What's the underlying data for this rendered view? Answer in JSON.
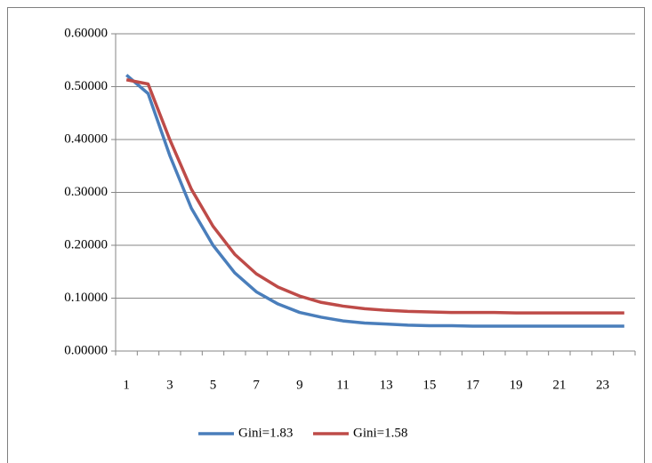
{
  "chart_data": {
    "type": "line",
    "categories": [
      1,
      null,
      3,
      null,
      5,
      null,
      7,
      null,
      9,
      null,
      11,
      null,
      13,
      null,
      15,
      null,
      17,
      null,
      19,
      null,
      21,
      null,
      23,
      null
    ],
    "series": [
      {
        "name": "Gini=1.83",
        "color": "#4a7ebb",
        "values": [
          0.522,
          0.487,
          0.37,
          0.27,
          0.2,
          0.148,
          0.112,
          0.089,
          0.073,
          0.064,
          0.057,
          0.053,
          0.051,
          0.049,
          0.048,
          0.048,
          0.047,
          0.047,
          0.047,
          0.047,
          0.047,
          0.047,
          0.047,
          0.047
        ]
      },
      {
        "name": "Gini=1.58",
        "color": "#be4b48",
        "values": [
          0.513,
          0.505,
          0.4,
          0.306,
          0.236,
          0.183,
          0.146,
          0.121,
          0.104,
          0.092,
          0.085,
          0.08,
          0.077,
          0.075,
          0.074,
          0.073,
          0.073,
          0.073,
          0.072,
          0.072,
          0.072,
          0.072,
          0.072,
          0.072
        ]
      }
    ],
    "ylim": [
      0,
      0.6
    ],
    "yticks": [
      {
        "value": 0,
        "label": "0.00000"
      },
      {
        "value": 0.1,
        "label": "0.10000"
      },
      {
        "value": 0.2,
        "label": "0.20000"
      },
      {
        "value": 0.3,
        "label": "0.30000"
      },
      {
        "value": 0.4,
        "label": "0.40000"
      },
      {
        "value": 0.5,
        "label": "0.50000"
      },
      {
        "value": 0.6,
        "label": "0.60000"
      }
    ],
    "grid": true,
    "legend": "bottom"
  }
}
